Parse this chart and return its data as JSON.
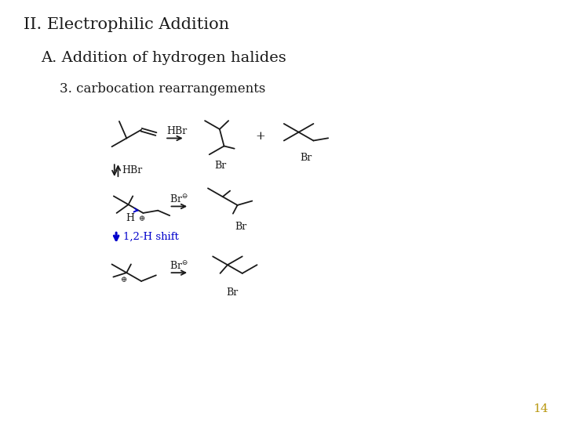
{
  "title_line1": "II. Electrophilic Addition",
  "title_line2": "A. Addition of hydrogen halides",
  "title_line3": "3. carbocation rearrangements",
  "page_number": "14",
  "page_number_color": "#b8960c",
  "background_color": "#ffffff",
  "text_color": "#1a1a1a",
  "blue_color": "#0000cc",
  "title1_fontsize": 15,
  "title2_fontsize": 14,
  "title3_fontsize": 12
}
